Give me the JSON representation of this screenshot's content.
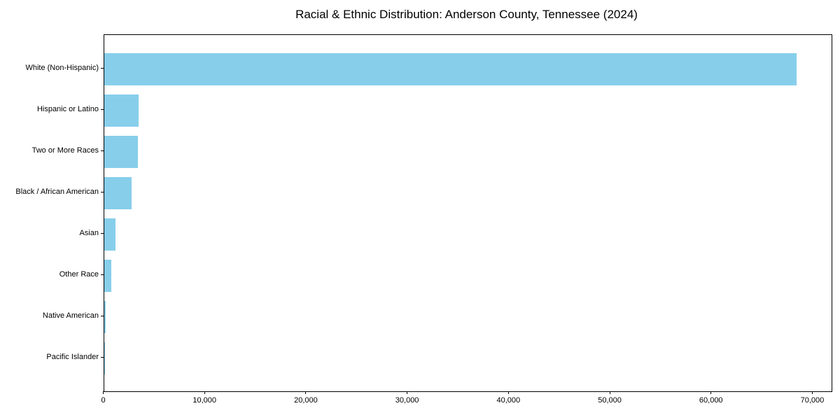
{
  "figure": {
    "background": "#ffffff",
    "text_color": "#000000",
    "axis_color": "#000000"
  },
  "chart_data": {
    "type": "bar",
    "orientation": "horizontal",
    "title": "Racial & Ethnic Distribution: Anderson County, Tennessee (2024)",
    "xlabel": "",
    "ylabel": "",
    "categories": [
      "White (Non-Hispanic)",
      "Hispanic or Latino",
      "Two or More Races",
      "Black / African American",
      "Asian",
      "Other Race",
      "Native American",
      "Pacific Islander"
    ],
    "values": [
      68350,
      3400,
      3330,
      2700,
      1130,
      740,
      170,
      30
    ],
    "bar_color": "#87CEEB",
    "xlim": [
      0,
      71800
    ],
    "x_ticks": [
      0,
      10000,
      20000,
      30000,
      40000,
      50000,
      60000,
      70000
    ],
    "x_tick_labels": [
      "0",
      "10,000",
      "20,000",
      "30,000",
      "40,000",
      "50,000",
      "60,000",
      "70,000"
    ],
    "grid": false,
    "legend": null,
    "sort_order": "descending"
  }
}
